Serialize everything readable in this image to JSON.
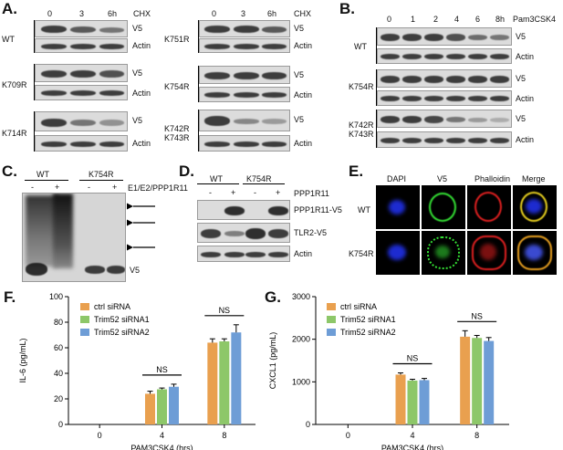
{
  "panelA": {
    "label": "A.",
    "times": [
      "0",
      "3",
      "6h"
    ],
    "treatment": "CHX",
    "left": [
      {
        "row": "WT",
        "bands": [
          "V5",
          "Actin"
        ]
      },
      {
        "row": "K709R",
        "bands": [
          "V5",
          "Actin"
        ]
      },
      {
        "row": "K714R",
        "bands": [
          "V5",
          "Actin"
        ]
      }
    ],
    "right": [
      {
        "row": "K751R",
        "bands": [
          "V5",
          "Actin"
        ]
      },
      {
        "row": "K754R",
        "bands": [
          "V5",
          "Actin"
        ]
      },
      {
        "row": "K742R\nK743R",
        "bands": [
          "V5",
          "Actin"
        ]
      }
    ]
  },
  "panelB": {
    "label": "B.",
    "times": [
      "0",
      "1",
      "2",
      "4",
      "6",
      "8h"
    ],
    "treatment": "Pam3CSK4",
    "rows": [
      {
        "row": "WT",
        "bands": [
          "V5",
          "Actin"
        ]
      },
      {
        "row": "K754R",
        "bands": [
          "V5",
          "Actin"
        ]
      },
      {
        "row": "K742R\nK743R",
        "bands": [
          "V5",
          "Actin"
        ]
      }
    ]
  },
  "panelC": {
    "label": "C.",
    "groups": [
      "WT",
      "K754R"
    ],
    "signs": [
      "-",
      "+",
      "-",
      "+"
    ],
    "treatment": "E1/E2/PPP1R11",
    "band": "V5"
  },
  "panelD": {
    "label": "D.",
    "groups": [
      "WT",
      "K754R"
    ],
    "signs": [
      "-",
      "+",
      "-",
      "+"
    ],
    "treatment": "PPP1R11",
    "bands": [
      "PPP1R11-V5",
      "TLR2-V5",
      "Actin"
    ]
  },
  "panelE": {
    "label": "E.",
    "columns": [
      "DAPI",
      "V5",
      "Phalloidin",
      "Merge"
    ],
    "rows": [
      "WT",
      "K754R"
    ]
  },
  "panelF": {
    "label": "F."
  },
  "panelG": {
    "label": "G."
  },
  "chart_data": [
    {
      "type": "bar",
      "panel": "F.",
      "categories": [
        "0",
        "4",
        "8"
      ],
      "series": [
        {
          "name": "ctrl siRNA",
          "color": "#E9A04F",
          "values": [
            null,
            24,
            64
          ],
          "errors": [
            null,
            2,
            3
          ]
        },
        {
          "name": "Trim52 siRNA1",
          "color": "#8DC769",
          "values": [
            null,
            27.5,
            65
          ],
          "errors": [
            null,
            1,
            2
          ]
        },
        {
          "name": "Trim52 siRNA2",
          "color": "#6E9DD6",
          "values": [
            null,
            29.5,
            72
          ],
          "errors": [
            null,
            2,
            6
          ]
        }
      ],
      "xlabel": "PAM3CSK4 (hrs)",
      "ylabel": "IL-6 (pg/mL)",
      "ylim": [
        0,
        100
      ],
      "yticks": [
        0,
        20,
        40,
        60,
        80,
        100
      ],
      "annotations": [
        {
          "text": "NS",
          "category": "4"
        },
        {
          "text": "NS",
          "category": "8"
        }
      ]
    },
    {
      "type": "bar",
      "panel": "G.",
      "categories": [
        "0",
        "4",
        "8"
      ],
      "series": [
        {
          "name": "ctrl siRNA",
          "color": "#E9A04F",
          "values": [
            null,
            1170,
            2060
          ],
          "errors": [
            null,
            40,
            140
          ]
        },
        {
          "name": "Trim52 siRNA1",
          "color": "#8DC769",
          "values": [
            null,
            1030,
            2030
          ],
          "errors": [
            null,
            30,
            60
          ]
        },
        {
          "name": "Trim52 siRNA2",
          "color": "#6E9DD6",
          "values": [
            null,
            1040,
            1960
          ],
          "errors": [
            null,
            40,
            80
          ]
        }
      ],
      "xlabel": "PAM3CSK4 (hrs)",
      "ylabel": "CXCL1 (pg/mL)",
      "ylim": [
        0,
        3000
      ],
      "yticks": [
        0,
        1000,
        2000,
        3000
      ],
      "annotations": [
        {
          "text": "NS",
          "category": "4"
        },
        {
          "text": "NS",
          "category": "8"
        }
      ]
    }
  ]
}
